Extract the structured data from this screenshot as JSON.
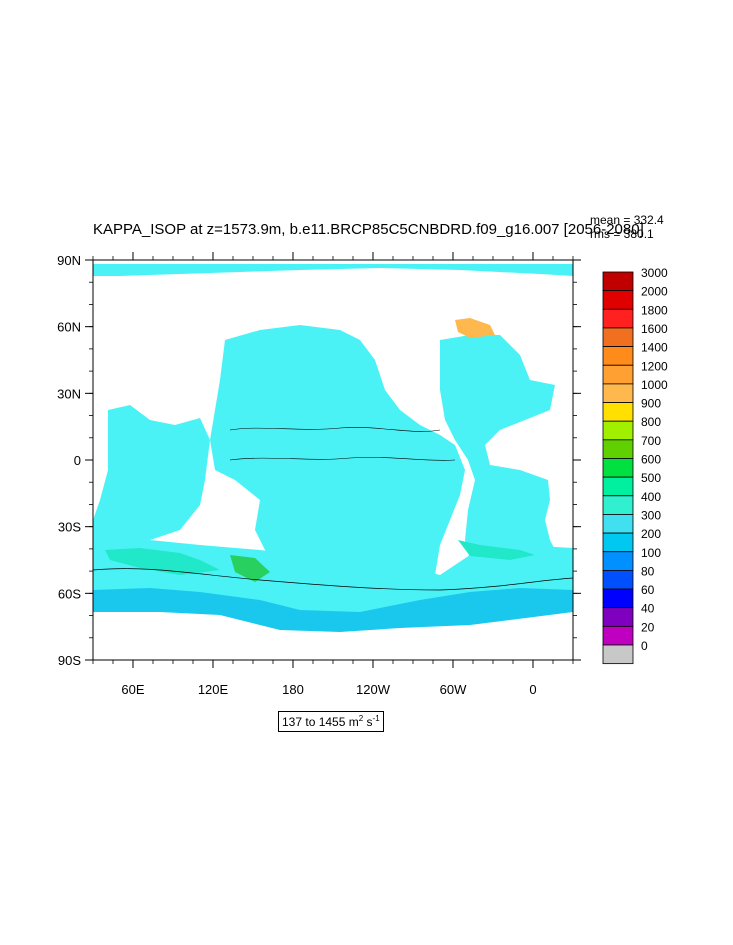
{
  "title": "KAPPA_ISOP at z=1573.9m, b.e11.BRCP85C5CNBDRD.f09_g16.007 [2056-2080]",
  "stats": {
    "mean": "mean = 332.4",
    "rms": "rms = 380.1"
  },
  "units": {
    "range": "137 to 1455 m",
    "exp1": "2",
    "mid": " s",
    "exp2": "-1"
  },
  "axes": {
    "lat_labels": [
      "90N",
      "60N",
      "30N",
      "0",
      "30S",
      "60S",
      "90S"
    ],
    "lon_labels": [
      "60E",
      "120E",
      "180",
      "120W",
      "60W",
      "0"
    ]
  },
  "colorbar": {
    "labels": [
      "3000",
      "2000",
      "1800",
      "1600",
      "1400",
      "1200",
      "1000",
      "900",
      "800",
      "700",
      "600",
      "500",
      "400",
      "300",
      "200",
      "100",
      "80",
      "60",
      "40",
      "20",
      "0"
    ],
    "colors": [
      "#c00000",
      "#e00000",
      "#ff2020",
      "#f07020",
      "#ff8c1a",
      "#ffa033",
      "#ffb84d",
      "#ffe000",
      "#a0f000",
      "#60d000",
      "#00e040",
      "#00f0a0",
      "#30f0d0",
      "#40e0f0",
      "#00c8f0",
      "#0090ff",
      "#0050ff",
      "#0000ff",
      "#8000c0",
      "#c000c0",
      "#c8c8c8"
    ]
  },
  "map_colors": {
    "land": "#ffffff",
    "ocean_main": "#4af2f6",
    "ocean_low": "#1ac8ee",
    "ocean_mid": "#20e8c8",
    "ocean_high": "#28d060"
  }
}
